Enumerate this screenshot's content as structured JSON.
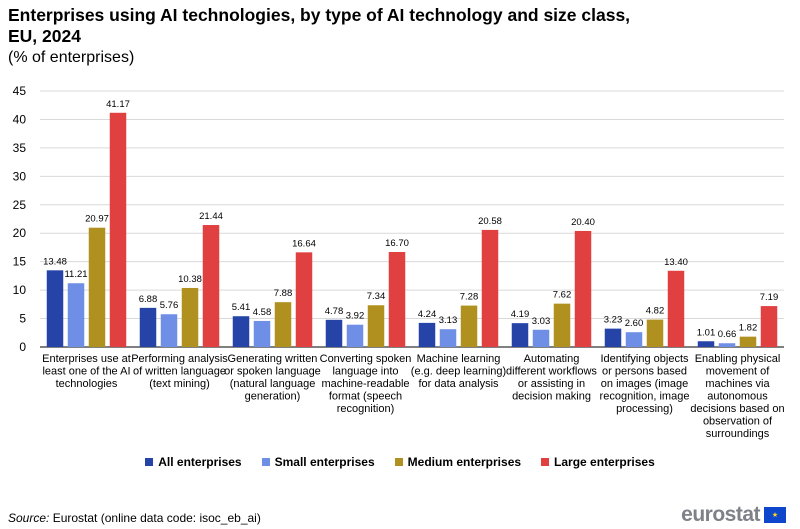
{
  "chart_data": {
    "type": "bar",
    "title": "Enterprises using AI technologies, by type of AI technology and size class, EU, 2024",
    "subtitle": "(% of enterprises)",
    "ylim": [
      0,
      45
    ],
    "yticks": [
      0,
      5,
      10,
      15,
      20,
      25,
      30,
      35,
      40,
      45
    ],
    "grid": true,
    "legend_position": "bottom",
    "categories": [
      [
        "Enterprises use at",
        "least one of the AI",
        "technologies"
      ],
      [
        "Performing analysis",
        "of written language",
        "(text mining)"
      ],
      [
        "Generating written",
        "or spoken language",
        "(natural language",
        "generation)"
      ],
      [
        "Converting spoken",
        "language into",
        "machine-readable",
        "format (speech",
        "recognition)"
      ],
      [
        "Machine learning",
        "(e.g. deep learning)",
        "for data analysis"
      ],
      [
        "Automating",
        "different workflows",
        "or assisting in",
        "decision making"
      ],
      [
        "Identifying objects",
        "or persons based",
        "on images (image",
        "recognition, image",
        "processing)"
      ],
      [
        "Enabling physical",
        "movement of",
        "machines via",
        "autonomous",
        "decisions based on",
        "observation of",
        "surroundings"
      ]
    ],
    "series": [
      {
        "name": "All enterprises",
        "color": "#2644a7",
        "values": [
          13.48,
          6.88,
          5.41,
          4.78,
          4.24,
          4.19,
          3.23,
          1.01
        ],
        "labels": [
          "13.48",
          "6.88",
          "5.41",
          "4.78",
          "4.24",
          "4.19",
          "3.23",
          "1.01"
        ]
      },
      {
        "name": "Small enterprises",
        "color": "#6f8fe6",
        "values": [
          11.21,
          5.76,
          4.58,
          3.92,
          3.13,
          3.03,
          2.6,
          0.66
        ],
        "labels": [
          "11.21",
          "5.76",
          "4.58",
          "3.92",
          "3.13",
          "3.03",
          "2.60",
          "0.66"
        ]
      },
      {
        "name": "Medium enterprises",
        "color": "#b09120",
        "values": [
          20.97,
          10.38,
          7.88,
          7.34,
          7.28,
          7.62,
          4.82,
          1.82
        ],
        "labels": [
          "20.97",
          "10.38",
          "7.88",
          "7.34",
          "7.28",
          "7.62",
          "4.82",
          "1.82"
        ]
      },
      {
        "name": "Large enterprises",
        "color": "#e04040",
        "values": [
          41.17,
          21.44,
          16.64,
          16.7,
          20.58,
          20.4,
          13.4,
          7.19
        ],
        "labels": [
          "41.17",
          "21.44",
          "16.64",
          "16.70",
          "20.58",
          "20.40",
          "13.40",
          "7.19"
        ]
      }
    ]
  },
  "source": {
    "label": "Source:",
    "text": "Eurostat (online data code: isoc_eb_ai)"
  },
  "logo": {
    "text": "eurostat",
    "flag_icon": "eu-flag-icon",
    "flag_glyph": "★"
  }
}
